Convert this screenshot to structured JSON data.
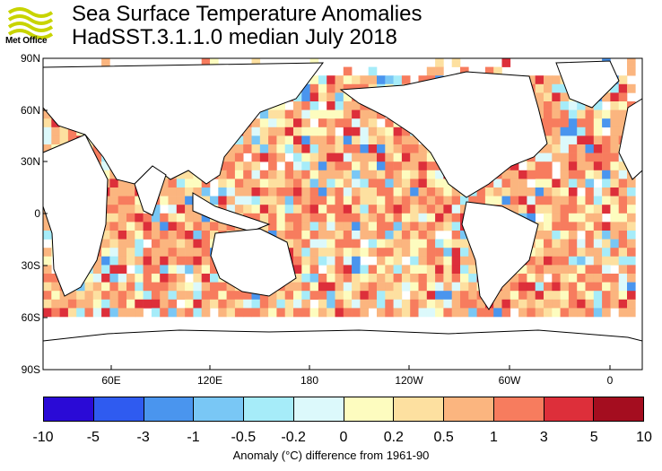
{
  "title": "Sea Surface Temperature Anomalies",
  "subtitle": "HadSST.3.1.1.0 median July 2018",
  "logo_text": "Met Office",
  "logo_color": "#c8d400",
  "lat_labels": [
    "90N",
    "60N",
    "30N",
    "0",
    "30S",
    "60S",
    "90S"
  ],
  "lon_labels": [
    "60E",
    "120E",
    "180",
    "120W",
    "60W",
    "0"
  ],
  "colorbar": {
    "colors": [
      "#2a0ad6",
      "#2f5bf0",
      "#4a95ee",
      "#79c7f5",
      "#a6ecf9",
      "#dcf9fb",
      "#fdfcbf",
      "#fde0a0",
      "#fbb57f",
      "#f77c5e",
      "#dd2f3a",
      "#a40d1f"
    ],
    "ticks": [
      "-10",
      "-5",
      "-3",
      "-1",
      "-0.5",
      "-0.2",
      "0",
      "0.2",
      "0.5",
      "1",
      "3",
      "5",
      "10"
    ],
    "title": "Anomaly (°C) difference from 1961-90"
  }
}
